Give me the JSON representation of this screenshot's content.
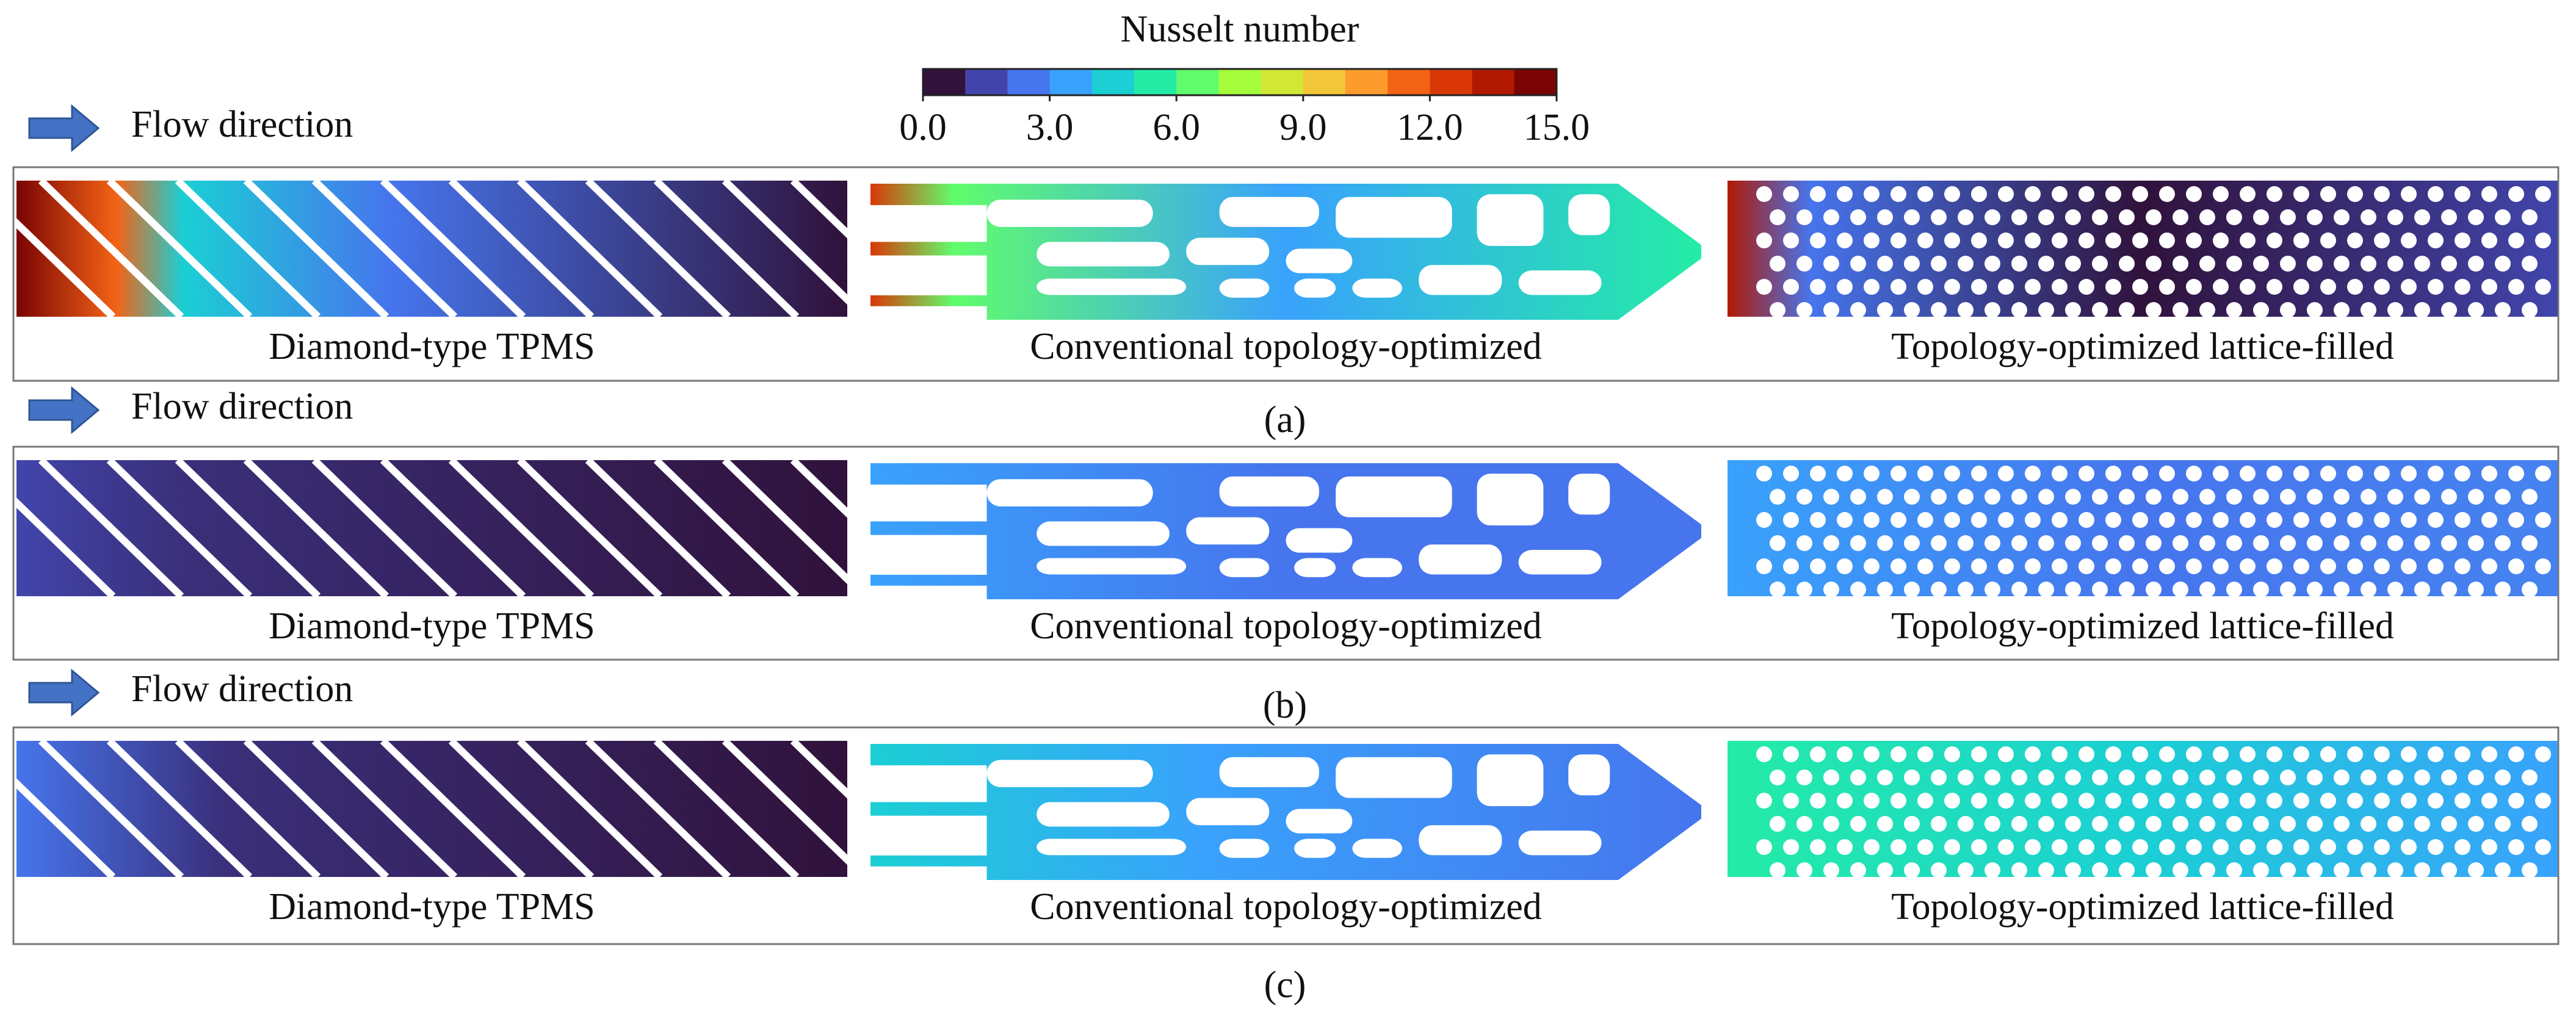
{
  "colorbar": {
    "title": "Nusselt number",
    "range": [
      0,
      15
    ],
    "ticks": [
      {
        "value": 0,
        "label": "0.0"
      },
      {
        "value": 3,
        "label": "3.0"
      },
      {
        "value": 6,
        "label": "6.0"
      },
      {
        "value": 9,
        "label": "9.0"
      },
      {
        "value": 12,
        "label": "12.0"
      },
      {
        "value": 15,
        "label": "15.0"
      }
    ],
    "colors": [
      "#30123b",
      "#4145ab",
      "#4675ed",
      "#39a2fc",
      "#1bcfd4",
      "#24eca6",
      "#61fc6c",
      "#a4fc3b",
      "#d1e834",
      "#f3c63a",
      "#fe9b2d",
      "#f36315",
      "#d93806",
      "#b11901",
      "#7a0403"
    ]
  },
  "rows": [
    {
      "flow_label": "Flow direction",
      "caption": "(a)",
      "panels": [
        "Diamond-type TPMS",
        "Conventional topology-optimized",
        "Topology-optimized lattice-filled"
      ]
    },
    {
      "flow_label": "Flow direction",
      "caption": "(b)",
      "panels": [
        "Diamond-type TPMS",
        "Conventional topology-optimized",
        "Topology-optimized lattice-filled"
      ]
    },
    {
      "flow_label": "Flow direction",
      "caption": "(c)",
      "panels": [
        "Diamond-type TPMS",
        "Conventional topology-optimized",
        "Topology-optimized lattice-filled"
      ]
    }
  ]
}
